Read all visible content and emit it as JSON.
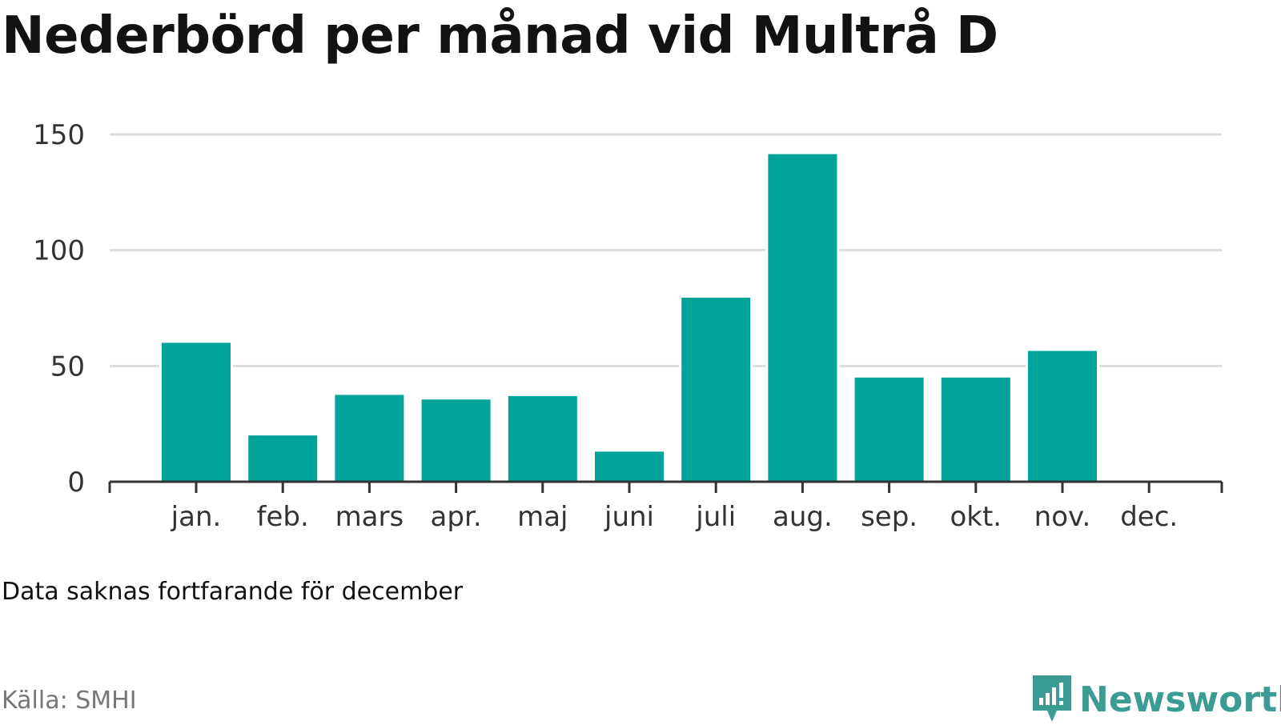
{
  "title": "Nederbörd per månad vid Multrå D",
  "note": "Data saknas fortfarande för december",
  "source": "Källa: SMHI",
  "brand": "Newsworthy",
  "colors": {
    "bar": "#00a49a",
    "grid": "#dddddd",
    "axis": "#333333",
    "brand": "#3b9c94"
  },
  "chart_data": {
    "type": "bar",
    "title": "Nederbörd per månad vid Multrå D",
    "xlabel": "",
    "ylabel": "",
    "categories": [
      "jan.",
      "feb.",
      "mars",
      "apr.",
      "maj",
      "juni",
      "juli",
      "aug.",
      "sep.",
      "okt.",
      "nov.",
      "dec."
    ],
    "values": [
      60,
      20,
      37.5,
      35.5,
      37,
      13,
      79.5,
      141.5,
      45,
      45,
      56.5,
      null
    ],
    "ylim": [
      0,
      150
    ],
    "yticks": [
      0,
      50,
      100,
      150
    ],
    "grid": true,
    "legend": "none"
  }
}
